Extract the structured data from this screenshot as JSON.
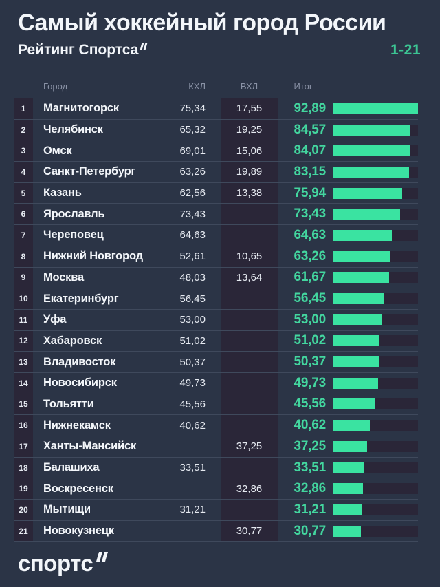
{
  "header": {
    "title": "Самый хоккейный город России",
    "subtitle": "Рейтинг Спортса",
    "range_label": "1-21"
  },
  "table": {
    "columns": {
      "city": "Город",
      "khl": "КХЛ",
      "vhl": "ВХЛ",
      "total": "Итог"
    }
  },
  "chart_data": {
    "type": "bar",
    "title": "Самый хоккейный город России",
    "subtitle": "Рейтинг Спортса, места 1-21",
    "orientation": "horizontal",
    "value_scale_max": 92.89,
    "columns": [
      "rank",
      "city",
      "КХЛ",
      "ВХЛ",
      "Итог"
    ],
    "rows": [
      {
        "rank": 1,
        "city": "Магнитогорск",
        "khl": "75,34",
        "vhl": "17,55",
        "total": "92,89",
        "value": 92.89
      },
      {
        "rank": 2,
        "city": "Челябинск",
        "khl": "65,32",
        "vhl": "19,25",
        "total": "84,57",
        "value": 84.57
      },
      {
        "rank": 3,
        "city": "Омск",
        "khl": "69,01",
        "vhl": "15,06",
        "total": "84,07",
        "value": 84.07
      },
      {
        "rank": 4,
        "city": "Санкт-Петербург",
        "khl": "63,26",
        "vhl": "19,89",
        "total": "83,15",
        "value": 83.15
      },
      {
        "rank": 5,
        "city": "Казань",
        "khl": "62,56",
        "vhl": "13,38",
        "total": "75,94",
        "value": 75.94
      },
      {
        "rank": 6,
        "city": "Ярославль",
        "khl": "73,43",
        "vhl": "",
        "total": "73,43",
        "value": 73.43
      },
      {
        "rank": 7,
        "city": "Череповец",
        "khl": "64,63",
        "vhl": "",
        "total": "64,63",
        "value": 64.63
      },
      {
        "rank": 8,
        "city": "Нижний Новгород",
        "khl": "52,61",
        "vhl": "10,65",
        "total": "63,26",
        "value": 63.26
      },
      {
        "rank": 9,
        "city": "Москва",
        "khl": "48,03",
        "vhl": "13,64",
        "total": "61,67",
        "value": 61.67
      },
      {
        "rank": 10,
        "city": "Екатеринбург",
        "khl": "56,45",
        "vhl": "",
        "total": "56,45",
        "value": 56.45
      },
      {
        "rank": 11,
        "city": "Уфа",
        "khl": "53,00",
        "vhl": "",
        "total": "53,00",
        "value": 53.0
      },
      {
        "rank": 12,
        "city": "Хабаровск",
        "khl": "51,02",
        "vhl": "",
        "total": "51,02",
        "value": 51.02
      },
      {
        "rank": 13,
        "city": "Владивосток",
        "khl": "50,37",
        "vhl": "",
        "total": "50,37",
        "value": 50.37
      },
      {
        "rank": 14,
        "city": "Новосибирск",
        "khl": "49,73",
        "vhl": "",
        "total": "49,73",
        "value": 49.73
      },
      {
        "rank": 15,
        "city": "Тольятти",
        "khl": "45,56",
        "vhl": "",
        "total": "45,56",
        "value": 45.56
      },
      {
        "rank": 16,
        "city": "Нижнекамск",
        "khl": "40,62",
        "vhl": "",
        "total": "40,62",
        "value": 40.62
      },
      {
        "rank": 17,
        "city": "Ханты-Мансийск",
        "khl": "",
        "vhl": "37,25",
        "total": "37,25",
        "value": 37.25
      },
      {
        "rank": 18,
        "city": "Балашиха",
        "khl": "33,51",
        "vhl": "",
        "total": "33,51",
        "value": 33.51
      },
      {
        "rank": 19,
        "city": "Воскресенск",
        "khl": "",
        "vhl": "32,86",
        "total": "32,86",
        "value": 32.86
      },
      {
        "rank": 20,
        "city": "Мытищи",
        "khl": "31,21",
        "vhl": "",
        "total": "31,21",
        "value": 31.21
      },
      {
        "rank": 21,
        "city": "Новокузнецк",
        "khl": "",
        "vhl": "30,77",
        "total": "30,77",
        "value": 30.77
      }
    ]
  },
  "footer": {
    "logo": "спортс"
  },
  "colors": {
    "background": "#2b3446",
    "strip": "#2a2638",
    "separator": "#3f495c",
    "bar": "#3ae3a1",
    "total_text": "#43d69f",
    "range_text": "#3cc493",
    "heading_text": "#f3f6fa",
    "muted_text": "#8a92a6"
  }
}
